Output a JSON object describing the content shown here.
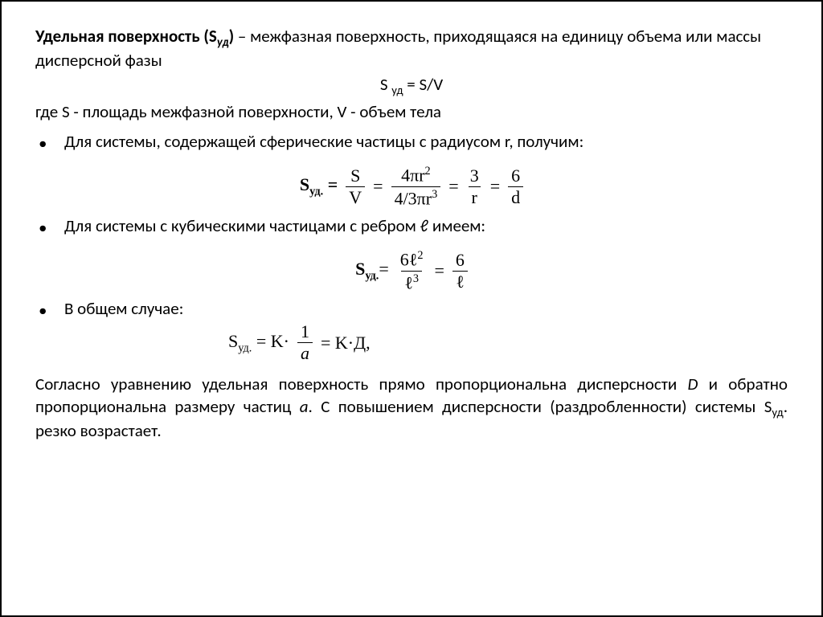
{
  "definition": {
    "term_bold_prefix": "Удельная поверхность (S",
    "term_sub": "уд",
    "term_bold_suffix": ")",
    "dash": " – ",
    "def_text": "межфазная поверхность, приходящаяся на единицу объема или массы дисперсной фазы"
  },
  "simple_eq": {
    "lhs1": "S ",
    "lhs_sub": "уд",
    "rhs": " = S/V"
  },
  "where_line": "где S - площадь межфазной поверхности, V - объем тела",
  "bullets": {
    "b1": "Для системы, содержащей сферические частицы с радиусом r, получим:",
    "b2": "Для системы с кубическими частицами с ребром ℓ  имеем:",
    "b3": "В общем случае:"
  },
  "eq1": {
    "S": "S",
    "sub": "уд.",
    "eq": " =",
    "f1_num": "S",
    "f1_den": "V",
    "f2_num": "4πr",
    "f2_num_sup": "2",
    "f2_den": "4/3πr",
    "f2_den_sup": "3",
    "f3_num": "3",
    "f3_den": "r",
    "f4_num": "6",
    "f4_den": "d"
  },
  "eq2": {
    "S": "S",
    "sub": "уд.",
    "eq": "=",
    "f1_num": "6ℓ",
    "f1_num_sup": "2",
    "f1_den": "ℓ",
    "f1_den_sup": "3",
    "f2_num": "6",
    "f2_den": "ℓ"
  },
  "eq3": {
    "S": "S",
    "sub": "уд.",
    "eq": " = K·",
    "f_num": "1",
    "f_den": "a",
    "tail": "= K·Д,",
    "italic_a": true
  },
  "conclusion": {
    "p1a": "Согласно уравнению удельная поверхность прямо пропорциональна дисперсности ",
    "D": "D",
    "p1b": " и обратно пропорциональна размеру частиц ",
    "a": "a",
    "p1c": ". С повышением дисперсности (раздробленности) системы S",
    "sub": "уд",
    "p1d": ". резко возрастает."
  },
  "colors": {
    "text": "#000000",
    "bg": "#ffffff",
    "border": "#000000"
  }
}
